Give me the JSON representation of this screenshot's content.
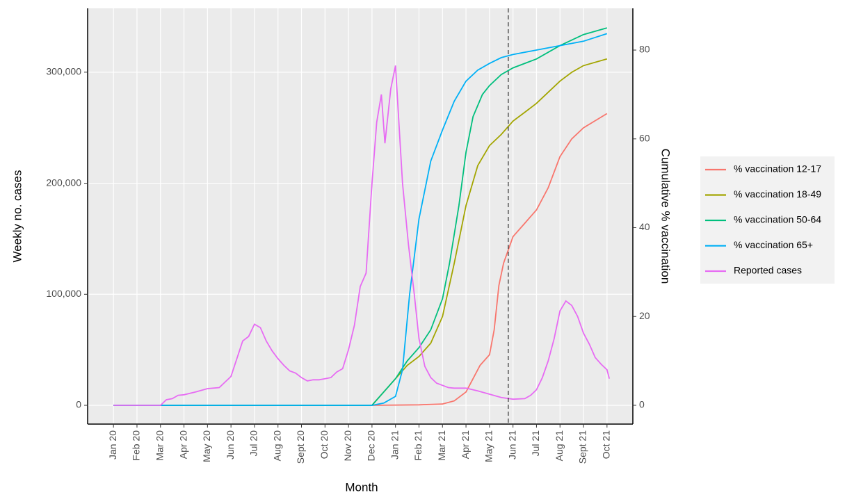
{
  "chart_data": {
    "type": "line",
    "x_label": "Month",
    "y_label": "Weekly no. cases",
    "y2_label": "Cumulative % vaccination",
    "xlim": [
      -1.1,
      22.1
    ],
    "ylim": [
      -16900,
      357500
    ],
    "y2lim": [
      -4.23,
      89.4
    ],
    "xticks": [
      {
        "value": 0,
        "label": "Jan 20"
      },
      {
        "value": 1,
        "label": "Feb 20"
      },
      {
        "value": 2,
        "label": "Mar 20"
      },
      {
        "value": 3,
        "label": "Apr 20"
      },
      {
        "value": 4,
        "label": "May 20"
      },
      {
        "value": 5,
        "label": "Jun 20"
      },
      {
        "value": 6,
        "label": "Jul 20"
      },
      {
        "value": 7,
        "label": "Aug 20"
      },
      {
        "value": 8,
        "label": "Sept 20"
      },
      {
        "value": 9,
        "label": "Oct 20"
      },
      {
        "value": 10,
        "label": "Nov 20"
      },
      {
        "value": 11,
        "label": "Dec 20"
      },
      {
        "value": 12,
        "label": "Jan 21"
      },
      {
        "value": 13,
        "label": "Feb 21"
      },
      {
        "value": 14,
        "label": "Mar 21"
      },
      {
        "value": 15,
        "label": "Apr 21"
      },
      {
        "value": 16,
        "label": "May 21"
      },
      {
        "value": 17,
        "label": "Jun 21"
      },
      {
        "value": 18,
        "label": "Jul 21"
      },
      {
        "value": 19,
        "label": "Aug 21"
      },
      {
        "value": 20,
        "label": "Sept 21"
      },
      {
        "value": 21,
        "label": "Oct 21"
      }
    ],
    "yticks": [
      0,
      {
        "value": 100000,
        "label": "100,000"
      },
      {
        "value": 200000,
        "label": "200,000"
      },
      {
        "value": 300000,
        "label": "300,000"
      }
    ],
    "y2ticks": [
      0,
      20,
      40,
      60,
      80
    ],
    "grid": true,
    "legend": "right",
    "vline": 16.8,
    "series": [
      {
        "name": "% vaccination 12-17",
        "color": "#F8766D",
        "axis": "y2",
        "x": [
          0,
          11,
          13,
          14,
          14.5,
          15,
          15.3,
          15.6,
          16,
          16.2,
          16.4,
          16.6,
          17,
          17.5,
          18,
          18.5,
          19,
          19.5,
          20,
          21
        ],
        "values": [
          0,
          0,
          0.1,
          0.3,
          1,
          3,
          6,
          9,
          11.4,
          17,
          27,
          32,
          38,
          41,
          44,
          49,
          56,
          60,
          62.5,
          65.7
        ]
      },
      {
        "name": "% vaccination 18-49",
        "color": "#A3A500",
        "axis": "y2",
        "x": [
          0,
          11,
          11.5,
          12,
          12.5,
          13,
          13.5,
          14,
          14.5,
          15,
          15.5,
          16,
          16.5,
          17,
          17.5,
          18,
          18.5,
          19,
          19.5,
          20,
          21
        ],
        "values": [
          0,
          0,
          3,
          6,
          9,
          11,
          14,
          20,
          32,
          45,
          54,
          58.5,
          61,
          64,
          66,
          68,
          70.5,
          73,
          75,
          76.5,
          78
        ]
      },
      {
        "name": "% vaccination 50-64",
        "color": "#00BF7D",
        "axis": "y2",
        "x": [
          0,
          11,
          11.5,
          12,
          12.5,
          13,
          13.5,
          14,
          14.3,
          14.7,
          15,
          15.3,
          15.7,
          16,
          16.5,
          17,
          18,
          19,
          20,
          21
        ],
        "values": [
          0,
          0,
          3,
          6,
          10,
          13,
          17,
          24,
          32,
          45,
          57,
          65,
          70,
          72,
          74.5,
          76,
          78,
          81,
          83.5,
          85
        ]
      },
      {
        "name": "% vaccination 65+",
        "color": "#00B0F6",
        "axis": "y2",
        "x": [
          0,
          11,
          11.5,
          12,
          12.3,
          12.6,
          13,
          13.5,
          14,
          14.5,
          15,
          15.5,
          16,
          16.5,
          17,
          18,
          19,
          20,
          21
        ],
        "values": [
          0,
          0,
          0.5,
          2,
          8,
          25,
          42,
          55,
          62,
          68.5,
          73,
          75.5,
          77,
          78.3,
          79,
          80,
          81,
          82,
          83.7
        ]
      },
      {
        "name": "Reported cases",
        "color": "#E76BF3",
        "x": [
          0,
          1,
          2,
          2.25,
          2.5,
          2.75,
          3,
          3.5,
          4,
          4.5,
          4.75,
          5,
          5.25,
          5.5,
          5.75,
          6,
          6.25,
          6.5,
          6.75,
          7,
          7.25,
          7.5,
          7.75,
          8,
          8.25,
          8.5,
          8.75,
          9,
          9.25,
          9.5,
          9.75,
          10,
          10.25,
          10.5,
          10.75,
          11,
          11.2,
          11.4,
          11.55,
          11.8,
          12,
          12.3,
          12.55,
          12.8,
          13,
          13.25,
          13.5,
          13.75,
          14,
          14.25,
          14.5,
          15,
          15.5,
          16,
          16.5,
          17,
          17.5,
          17.75,
          18,
          18.25,
          18.5,
          18.75,
          19,
          19.25,
          19.5,
          19.75,
          20,
          20.25,
          20.5,
          20.75,
          21,
          21.1
        ],
        "values": [
          0,
          0,
          0,
          5000,
          6000,
          9000,
          9500,
          12000,
          15000,
          16000,
          21000,
          26000,
          42000,
          58000,
          62000,
          73000,
          70000,
          58000,
          49000,
          42000,
          36000,
          31000,
          29000,
          25000,
          22000,
          23000,
          23000,
          24000,
          25000,
          30000,
          33000,
          50000,
          72000,
          107000,
          119000,
          200000,
          255000,
          280000,
          236000,
          285000,
          306000,
          200000,
          145000,
          100000,
          60000,
          35000,
          25000,
          20000,
          18000,
          16000,
          15500,
          15500,
          13000,
          10000,
          7000,
          5500,
          6000,
          9000,
          14000,
          25000,
          40000,
          60000,
          85000,
          94000,
          90000,
          80000,
          65000,
          55000,
          43000,
          37000,
          32000,
          24000
        ]
      }
    ]
  }
}
